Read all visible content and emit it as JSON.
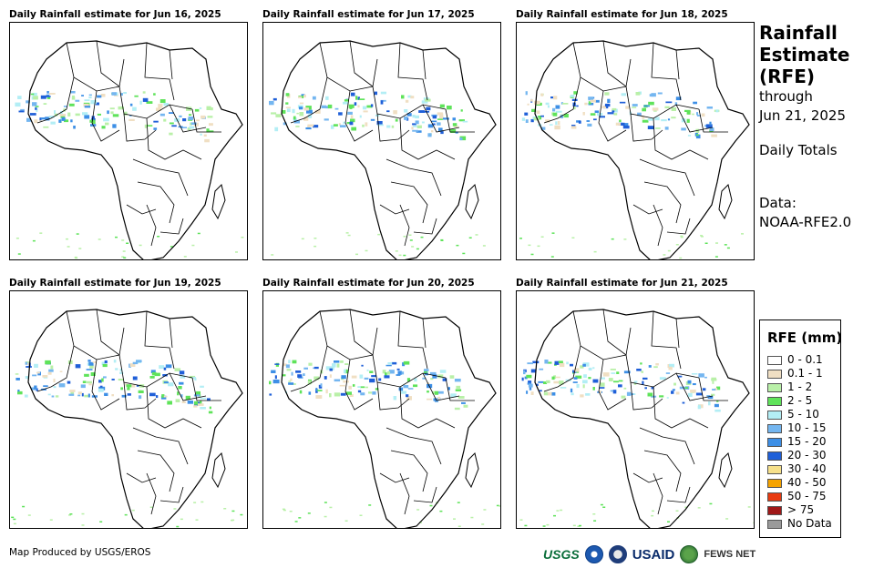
{
  "panels": [
    {
      "title": "Daily Rainfall estimate for Jun 16, 2025"
    },
    {
      "title": "Daily Rainfall estimate for Jun 17, 2025"
    },
    {
      "title": "Daily Rainfall estimate for Jun 18, 2025"
    },
    {
      "title": "Daily Rainfall estimate for Jun 19, 2025"
    },
    {
      "title": "Daily Rainfall estimate for Jun 20, 2025"
    },
    {
      "title": "Daily Rainfall estimate for Jun 21, 2025"
    }
  ],
  "sidebar": {
    "heading_line1": "Rainfall",
    "heading_line2": "Estimate",
    "heading_line3": "(RFE)",
    "through_label": "through",
    "date": "Jun 21, 2025",
    "mode": "Daily Totals",
    "data_label": "Data:",
    "data_source": "NOAA-RFE2.0"
  },
  "legend": {
    "title": "RFE (mm)",
    "items": [
      {
        "label": "0 - 0.1",
        "color": "#ffffff"
      },
      {
        "label": "0.1 - 1",
        "color": "#f0dfc3"
      },
      {
        "label": "1 - 2",
        "color": "#b9f0a8"
      },
      {
        "label": "2 - 5",
        "color": "#5fe35a"
      },
      {
        "label": "5 - 10",
        "color": "#b3eef5"
      },
      {
        "label": "10 - 15",
        "color": "#74b6f0"
      },
      {
        "label": "15 - 20",
        "color": "#3d8fe6"
      },
      {
        "label": "20 - 30",
        "color": "#1f5fd8"
      },
      {
        "label": "30 - 40",
        "color": "#f6e08a"
      },
      {
        "label": "40 - 50",
        "color": "#f5a300"
      },
      {
        "label": "50 - 75",
        "color": "#e83a10"
      },
      {
        "label": "> 75",
        "color": "#a01818"
      },
      {
        "label": "No Data",
        "color": "#9a9a9a"
      }
    ]
  },
  "footer": {
    "credit": "Map Produced by USGS/EROS",
    "logos": {
      "usgs": "USGS",
      "usaid": "USAID",
      "fews": "FEWS NET"
    }
  }
}
